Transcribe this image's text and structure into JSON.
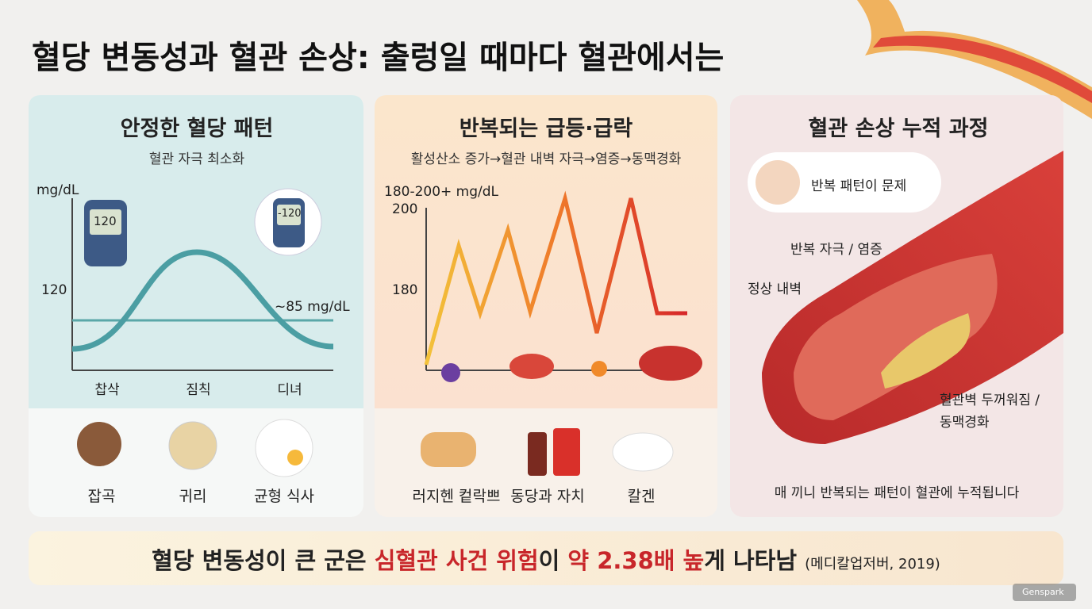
{
  "title": "혈당 변동성과 혈관 손상: 출렁일 때마다 혈관에서는",
  "panels": [
    {
      "title": "안정한 혈당 패턴",
      "subtitle": "혈관 자극 최소화",
      "y_unit": "mg/dL",
      "y_label": "120",
      "meter_left": "120",
      "meter_right": "-120",
      "level_label": "~85 mg/dL",
      "times": [
        "찹삭",
        "짐칙",
        "디녀"
      ],
      "foods": [
        "잡곡",
        "귀리",
        "균형 식사"
      ]
    },
    {
      "title": "반복되는 급등·급락",
      "subtitle": "활성산소 증가→혈관 내벽 자극→염증→동맥경화",
      "range_label": "180-200+ mg/dL",
      "y_labels": [
        "200",
        "180"
      ],
      "foods": [
        "러지헨 컽락쁘",
        "동당과 자치",
        "칼겐"
      ]
    },
    {
      "title": "혈관 손상 누적 과정",
      "badge": "반복 패턴이 문제",
      "labels": [
        "반복 자극 / 염증",
        "정상 내벽",
        "혈관벽 두꺼워짐 /",
        "동맥경화"
      ],
      "caption": "매 끼니 반복되는 패턴이 혈관에 누적됩니다"
    }
  ],
  "banner": {
    "parts": [
      "혈당 변동성이 큰 군은 ",
      "심혈관 사건 위험",
      "이 ",
      "약 2.38배 높",
      "게 나타남"
    ],
    "source": "(메디칼업저버, 2019)"
  },
  "watermark": "Genspark"
}
